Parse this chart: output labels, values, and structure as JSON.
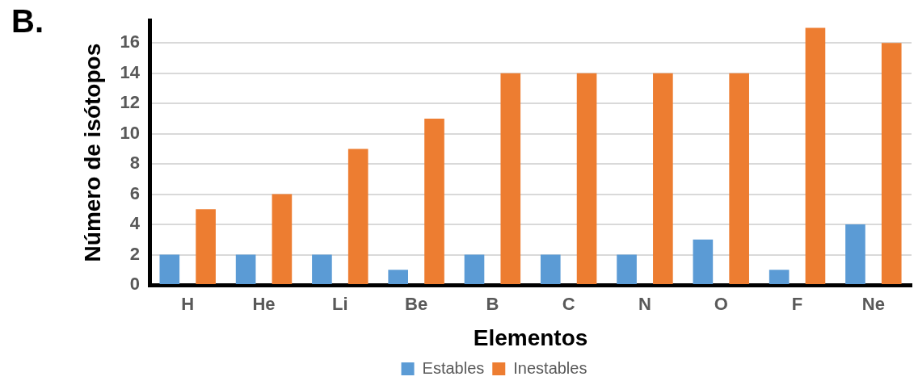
{
  "chart_data": {
    "type": "bar",
    "title": "B.",
    "xlabel": "Elementos",
    "ylabel": "Número de isótopos",
    "categories": [
      "H",
      "He",
      "Li",
      "Be",
      "B",
      "C",
      "N",
      "O",
      "F",
      "Ne"
    ],
    "series": [
      {
        "name": "Estables",
        "color": "#5b9bd5",
        "values": [
          2,
          2,
          2,
          1,
          2,
          2,
          2,
          3,
          1,
          4
        ]
      },
      {
        "name": "Inestables",
        "color": "#ed7d31",
        "values": [
          5,
          6,
          9,
          11,
          14,
          14,
          14,
          14,
          17,
          16
        ]
      }
    ],
    "ylim": [
      0,
      17.5
    ],
    "yticks": [
      0,
      2,
      4,
      6,
      8,
      10,
      12,
      14,
      16
    ],
    "grid": "y",
    "legend": "bottom"
  }
}
